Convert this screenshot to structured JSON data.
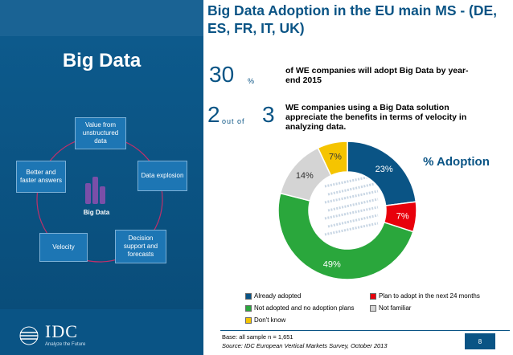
{
  "left_panel": {
    "title": "Big Data",
    "hub_label": "Big Data",
    "nodes": [
      {
        "label": "Value from unstructured data"
      },
      {
        "label": "Data explosion"
      },
      {
        "label": "Decision support and forecasts"
      },
      {
        "label": "Velocity"
      },
      {
        "label": "Better and faster answers"
      }
    ],
    "logo_text": "IDC",
    "logo_tagline": "Analyze the Future"
  },
  "header": {
    "title": "Big Data Adoption in the EU main MS - (DE, ES, FR, IT, UK)"
  },
  "stats": [
    {
      "big": "30",
      "small": "%",
      "text": "of WE companies will adopt Big Data by year-end 2015"
    },
    {
      "big_a": "2",
      "small": "out of",
      "big_b": "3",
      "text": "WE companies using a Big Data solution appreciate the benefits in terms of velocity in analyzing data."
    }
  ],
  "chart_data": {
    "type": "pie",
    "title": "% Adoption",
    "categories": [
      "Already adopted",
      "Plan to adopt in the next 24 months",
      "Not adopted and no adoption plans",
      "Not familiar",
      "Don't know"
    ],
    "values": [
      23,
      7,
      49,
      14,
      7
    ],
    "value_labels": [
      "23%",
      "7%",
      "49%",
      "14%",
      "7%"
    ],
    "colors": [
      "#0a5485",
      "#e8000b",
      "#2aa73c",
      "#d4d4d4",
      "#f5c400"
    ],
    "legend_position": "bottom",
    "style": "donut"
  },
  "footer": {
    "base": "Base: all sample   n = 1,651",
    "source": "Source: IDC European Vertical Markets Survey, October 2013",
    "page_number": "8"
  }
}
